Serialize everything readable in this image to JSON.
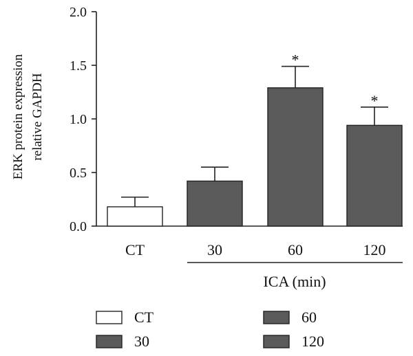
{
  "chart_data": {
    "type": "bar",
    "ylabel_lines": [
      "ERK protein expression",
      "relative GAPDH"
    ],
    "ylim": [
      0,
      2.0
    ],
    "yticks": [
      "0.0",
      "0.5",
      "1.0",
      "1.5",
      "2.0"
    ],
    "categories": [
      "CT",
      "30",
      "60",
      "120"
    ],
    "values": [
      0.18,
      0.42,
      1.29,
      0.94
    ],
    "error": [
      0.09,
      0.13,
      0.2,
      0.17
    ],
    "significance": [
      "",
      "",
      "*",
      "*"
    ],
    "fills": [
      "#ffffff",
      "#5a5a5a",
      "#5a5a5a",
      "#5a5a5a"
    ],
    "group_label": "ICA (min)",
    "legend": [
      {
        "label": "CT",
        "color": "#ffffff"
      },
      {
        "label": "60",
        "color": "#5a5a5a"
      },
      {
        "label": "30",
        "color": "#5a5a5a"
      },
      {
        "label": "120",
        "color": "#5a5a5a"
      }
    ]
  }
}
